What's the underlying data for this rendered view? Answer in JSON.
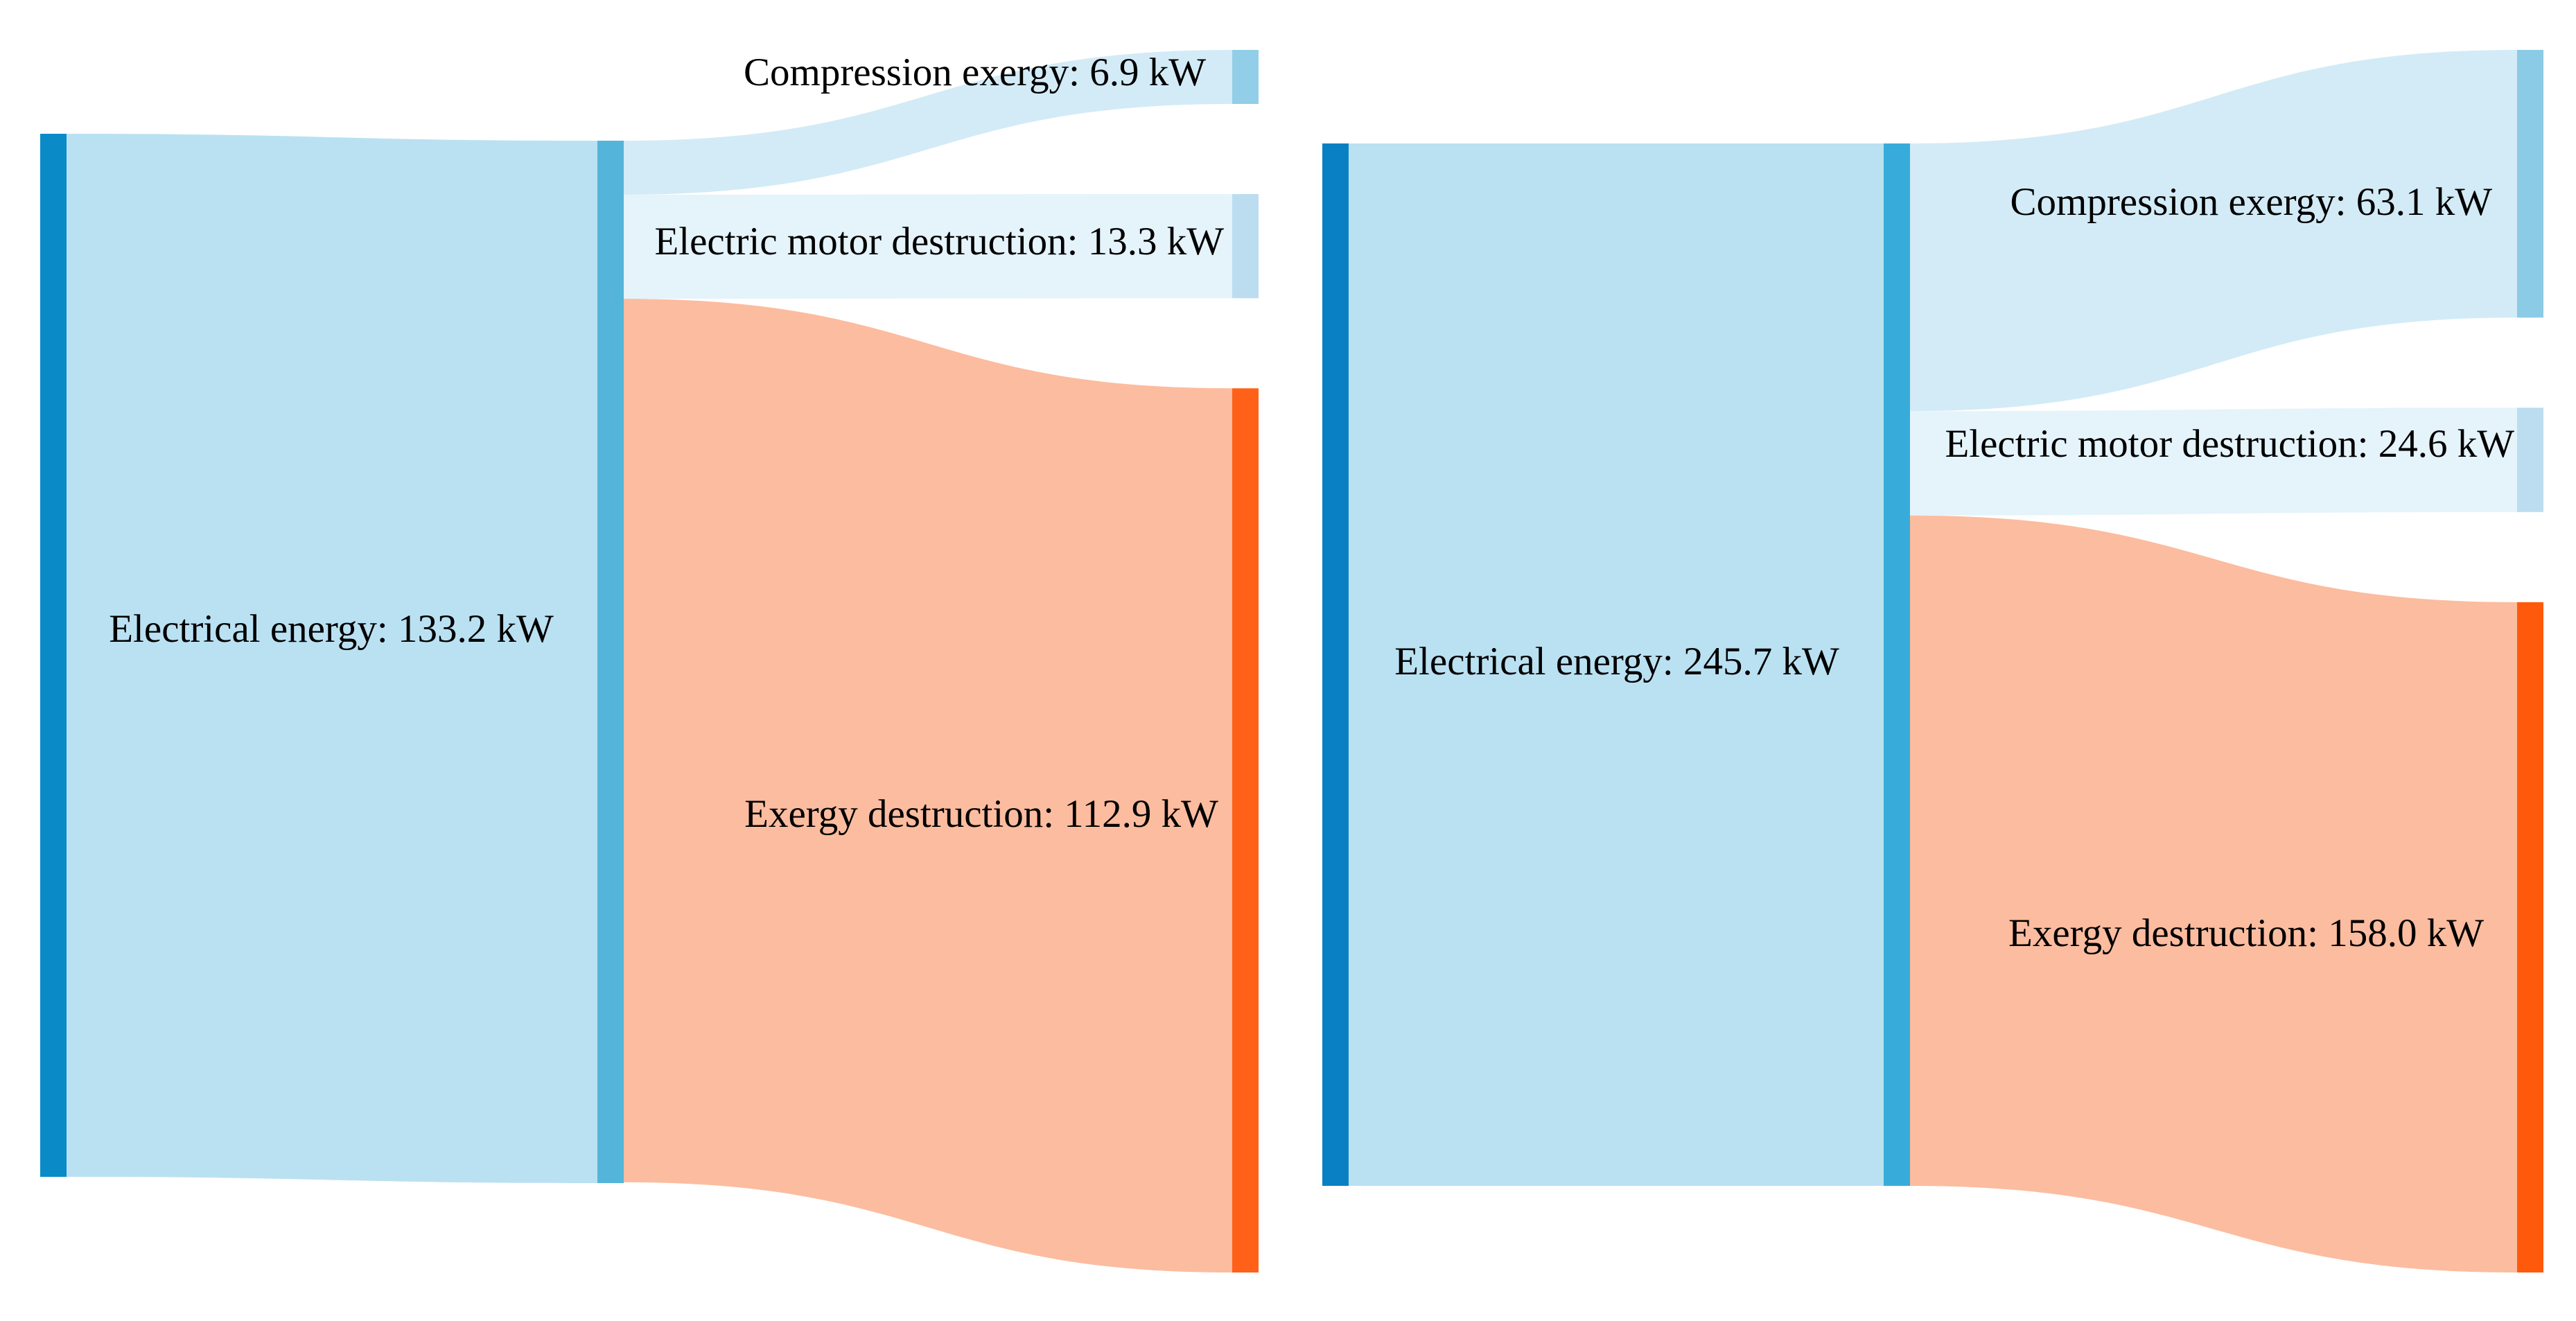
{
  "chart_data": [
    {
      "type": "sankey",
      "unit": "kW",
      "nodes": [
        {
          "id": "electrical",
          "label": "Electrical energy: 133.2 kW",
          "value": 133.2,
          "color": "#0A8BC8"
        },
        {
          "id": "motor",
          "label": "",
          "value": 133.2,
          "color": "#54B4DA"
        },
        {
          "id": "compression",
          "label": "Compression exergy: 6.9 kW",
          "value": 6.9,
          "color": "#92CEE7"
        },
        {
          "id": "motor_destruction",
          "label": "Electric motor destruction: 13.3 kW",
          "value": 13.3,
          "color": "#BCDDF0"
        },
        {
          "id": "exergy_destruction",
          "label": "Exergy destruction: 112.9 kW",
          "value": 112.9,
          "color": "#FF6118"
        }
      ],
      "links": [
        {
          "source": "electrical",
          "target": "motor",
          "value": 133.2,
          "color": "#BAE1F2"
        },
        {
          "source": "motor",
          "target": "compression",
          "value": 6.9,
          "color": "#D3EBF6"
        },
        {
          "source": "motor",
          "target": "motor_destruction",
          "value": 13.3,
          "color": "#E5F3FB"
        },
        {
          "source": "motor",
          "target": "exergy_destruction",
          "value": 112.9,
          "color": "#FCBC9F"
        }
      ]
    },
    {
      "type": "sankey",
      "unit": "kW",
      "nodes": [
        {
          "id": "electrical",
          "label": "Electrical energy: 245.7 kW",
          "value": 245.7,
          "color": "#0A80C4"
        },
        {
          "id": "motor",
          "label": "",
          "value": 245.7,
          "color": "#37ACDA"
        },
        {
          "id": "compression",
          "label": "Compression exergy: 63.1 kW",
          "value": 63.1,
          "color": "#8BCBE5"
        },
        {
          "id": "motor_destruction",
          "label": "Electric motor destruction: 24.6 kW",
          "value": 24.6,
          "color": "#BCDDF0"
        },
        {
          "id": "exergy_destruction",
          "label": "Exergy destruction: 158.0 kW",
          "value": 158.0,
          "color": "#FF5A0C"
        }
      ],
      "links": [
        {
          "source": "electrical",
          "target": "motor",
          "value": 245.7,
          "color": "#BAE1F2"
        },
        {
          "source": "motor",
          "target": "compression",
          "value": 63.1,
          "color": "#D3EBF6"
        },
        {
          "source": "motor",
          "target": "motor_destruction",
          "value": 24.6,
          "color": "#E5F3FB"
        },
        {
          "source": "motor",
          "target": "exergy_destruction",
          "value": 158.0,
          "color": "#FCBC9F"
        }
      ]
    }
  ]
}
